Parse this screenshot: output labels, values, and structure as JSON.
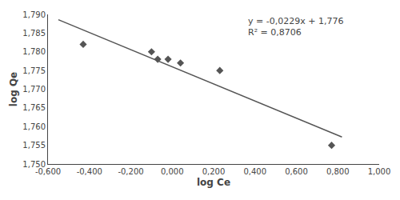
{
  "chart_data": {
    "type": "scatter",
    "xlabel": "log Ce",
    "ylabel": "log Qe",
    "annotations": [
      "y = -0,0229x + 1,776",
      "R² = 0,8706"
    ],
    "series": [
      {
        "type": "scatter",
        "marker": "diamond",
        "color": "#555555",
        "x": [
          -0.43,
          -0.1,
          -0.07,
          -0.02,
          0.04,
          0.23,
          0.77
        ],
        "values": [
          1.782,
          1.78,
          1.778,
          1.778,
          1.777,
          1.775,
          1.755
        ]
      },
      {
        "type": "line",
        "color": "#555555",
        "x": [
          -0.55,
          0.82
        ],
        "values": [
          1.788595,
          1.757222
        ]
      }
    ],
    "xlim": [
      -0.6,
      1.0
    ],
    "ylim": [
      1.75,
      1.79
    ],
    "xticks": [
      {
        "value": -0.6,
        "label": "-0,600"
      },
      {
        "value": -0.4,
        "label": "-0,400"
      },
      {
        "value": -0.2,
        "label": "-0,200"
      },
      {
        "value": 0.0,
        "label": "0,000"
      },
      {
        "value": 0.2,
        "label": "0,200"
      },
      {
        "value": 0.4,
        "label": "0,400"
      },
      {
        "value": 0.6,
        "label": "0,600"
      },
      {
        "value": 0.8,
        "label": "0,800"
      },
      {
        "value": 1.0,
        "label": "1,000"
      }
    ],
    "yticks": [
      {
        "value": 1.75,
        "label": "1,750"
      },
      {
        "value": 1.755,
        "label": "1,755"
      },
      {
        "value": 1.76,
        "label": "1,760"
      },
      {
        "value": 1.765,
        "label": "1,765"
      },
      {
        "value": 1.77,
        "label": "1,770"
      },
      {
        "value": 1.775,
        "label": "1,775"
      },
      {
        "value": 1.78,
        "label": "1,780"
      },
      {
        "value": 1.785,
        "label": "1,785"
      },
      {
        "value": 1.79,
        "label": "1,790"
      }
    ],
    "grid": false
  }
}
